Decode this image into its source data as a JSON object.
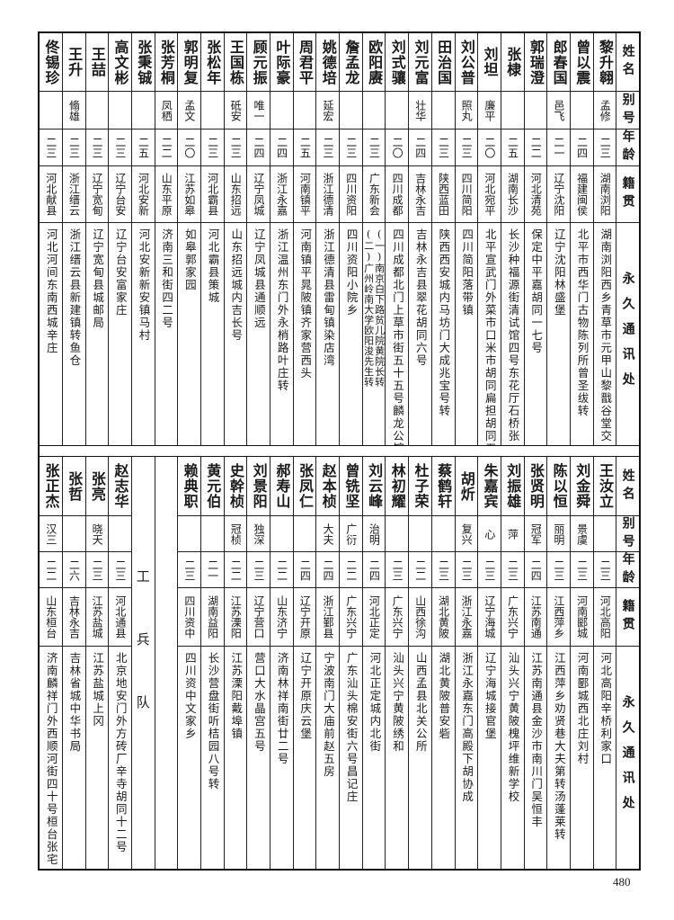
{
  "header_labels": {
    "name": "姓名",
    "alias": "别号",
    "age": "年龄",
    "native": "籍贯",
    "address": "永久通讯处"
  },
  "top_table": {
    "people": [
      {
        "name": "黎升翱",
        "alias": "孟修",
        "age": "二三",
        "native": "湖南浏阳",
        "address": [
          "湖南浏阳西乡青草市元甲山黎戬谷堂交"
        ]
      },
      {
        "name": "曾以震",
        "alias": "",
        "age": "二四",
        "native": "福建闽侯",
        "address": [
          "北平市西华门古物陈列所曾圣绂转"
        ]
      },
      {
        "name": "郎春国",
        "alias": "邑飞",
        "age": "二一",
        "native": "辽宁沈阳",
        "address": [
          "辽宁沈阳林盛堡"
        ]
      },
      {
        "name": "郭瑞澄",
        "alias": "",
        "age": "二二",
        "native": "河北清苑",
        "address": [
          "保定中平嘉胡同一七号"
        ]
      },
      {
        "name": "张棣",
        "alias": "",
        "age": "二五",
        "native": "湖南长沙",
        "address": [
          "长沙种福源街清试馆四号东花厅石桥张"
        ]
      },
      {
        "name": "刘坦",
        "alias": "廉平",
        "age": "二〇",
        "native": "河北宛平",
        "address": [
          "北平宣武门外菜市口米市胡同扁担胡同五号"
        ]
      },
      {
        "name": "刘公普",
        "alias": "照丸",
        "age": "二三",
        "native": "四川简阳",
        "address": [
          "四川简阳落带镇"
        ]
      },
      {
        "name": "田治国",
        "alias": "",
        "age": "二三",
        "native": "陕西蓝田",
        "address": [
          "陕西西安城内马坊门大成兆宝号转"
        ]
      },
      {
        "name": "刘元富",
        "alias": "壮华",
        "age": "二四",
        "native": "吉林永吉",
        "address": [
          "吉林永吉县翠花胡同六号"
        ]
      },
      {
        "name": "刘式骧",
        "alias": "",
        "age": "二〇",
        "native": "四川成都",
        "address": [
          "四川成都北门上草市街五十五号麟龙公馆"
        ]
      },
      {
        "name": "欧阳赓",
        "alias": "",
        "age": "二三",
        "native": "广东新会",
        "address": [
          "(一)南京白下路贫儿院黄院长转",
          "(二)广州岭南大学欧阳浚先生转"
        ]
      },
      {
        "name": "詹孟龙",
        "alias": "",
        "age": "二三",
        "native": "四川资阳",
        "address": [
          "四川资阳小院乡"
        ]
      },
      {
        "name": "姚德培",
        "alias": "延宏",
        "age": "二三",
        "native": "浙江德清",
        "address": [
          "浙江德清县雷甸镇染店湾"
        ]
      },
      {
        "name": "周君平",
        "alias": "",
        "age": "二五",
        "native": "河南镇平",
        "address": [
          "河南镇平晁陂镇齐家营西头"
        ]
      },
      {
        "name": "叶际豪",
        "alias": "",
        "age": "二四",
        "native": "浙江永嘉",
        "address": [
          "浙江温州东门外永梢路叶庄转"
        ]
      },
      {
        "name": "顾元振",
        "alias": "唯一",
        "age": "二四",
        "native": "辽宁凤城",
        "address": [
          "辽宁凤城县通顺远"
        ]
      },
      {
        "name": "王国栋",
        "alias": "砥安",
        "age": "二三",
        "native": "山东招远",
        "address": [
          "山东招远城内吉长号"
        ]
      },
      {
        "name": "张松年",
        "alias": "",
        "age": "二三",
        "native": "河北霸县",
        "address": [
          "河北霸县策城"
        ]
      },
      {
        "name": "郭明复",
        "alias": "孟文",
        "age": "二〇",
        "native": "江苏如皋",
        "address": [
          "如皋郭家园"
        ]
      },
      {
        "name": "张芳桐",
        "alias": "凤栖",
        "age": "二二",
        "native": "山东平原",
        "address": [
          "济南三和街四二号"
        ]
      },
      {
        "name": "张秉铖",
        "alias": "",
        "age": "二五",
        "native": "河北安新",
        "address": [
          "河北安新新安镇马村"
        ]
      },
      {
        "name": "高文彬",
        "alias": "",
        "age": "二三",
        "native": "辽宁台安",
        "address": [
          "辽宁台安富家庄"
        ]
      },
      {
        "name": "王喆",
        "alias": "",
        "age": "二三",
        "native": "辽宁宽甸",
        "address": [
          "辽宁宽甸县城邮局"
        ]
      },
      {
        "name": "王升",
        "alias": "翛雄",
        "age": "二三",
        "native": "浙江缙云",
        "address": [
          "浙江缙云县新建镇转鱼仓"
        ]
      },
      {
        "name": "佟锡珍",
        "alias": "",
        "age": "二三",
        "native": "河北献县",
        "address": [
          "河北河间东南西城辛庄"
        ]
      }
    ]
  },
  "bottom_table": {
    "people_before_section": [
      {
        "name": "王汝立",
        "alias": "",
        "age": "二三",
        "native": "河北高阳",
        "address": [
          "河北高阳辛桥利家口"
        ]
      },
      {
        "name": "刘金舜",
        "alias": "景虞",
        "age": "二三",
        "native": "河南郾城",
        "address": [
          "河南郾城西北庄刘村"
        ]
      },
      {
        "name": "陈以恒",
        "alias": "丽明",
        "age": "二三",
        "native": "江西萍乡",
        "address": [
          "江西萍乡劝贤巷大夫第转汤蓬莱转"
        ]
      },
      {
        "name": "张贤明",
        "alias": "冠军",
        "age": "二四",
        "native": "江苏南通",
        "address": [
          "江苏南通县金沙市南川门吴恒丰"
        ]
      },
      {
        "name": "刘振雄",
        "alias": "萍",
        "age": "二三",
        "native": "广东兴宁",
        "address": [
          "汕头兴宁黄陂槐坪维新学校"
        ]
      },
      {
        "name": "朱嘉宾",
        "alias": "心",
        "age": "二三",
        "native": "辽宁海城",
        "address": [
          "辽宁海城接官堡"
        ]
      },
      {
        "name": "胡炘",
        "alias": "复兴",
        "age": "二三",
        "native": "浙江永嘉",
        "address": [
          "浙江永嘉东门高殿下胡协成"
        ]
      },
      {
        "name": "蔡鹤轩",
        "alias": "",
        "age": "二三",
        "native": "湖北黄陂",
        "address": [
          "湖北黄陂普安砦"
        ]
      },
      {
        "name": "杜子荣",
        "alias": "",
        "age": "二二",
        "native": "山西徐沟",
        "address": [
          "山西孟县北关公所"
        ]
      },
      {
        "name": "林初耀",
        "alias": "",
        "age": "二三",
        "native": "广东兴宁",
        "address": [
          "汕头兴宁黄陂绣和"
        ]
      },
      {
        "name": "刘云峰",
        "alias": "治明",
        "age": "二四",
        "native": "河北正定",
        "address": [
          "河北正定城内北街"
        ]
      },
      {
        "name": "曾铣坚",
        "alias": "广衍",
        "age": "二二",
        "native": "广东兴宁",
        "address": [
          "广东汕头棉安街六号昌记庄"
        ]
      },
      {
        "name": "赵本桢",
        "alias": "大夫",
        "age": "二四",
        "native": "浙江鄞县",
        "address": [
          "宁波南门大庙前赵五房"
        ]
      },
      {
        "name": "张凤仁",
        "alias": "",
        "age": "二四",
        "native": "辽宁开原",
        "address": [
          "辽宁开原庆云堡"
        ]
      },
      {
        "name": "郝寿山",
        "alias": "",
        "age": "二二",
        "native": "山东济宁",
        "address": [
          "济南林祥南街廿二号"
        ]
      },
      {
        "name": "刘景阳",
        "alias": "独深",
        "age": "二三",
        "native": "辽宁营口",
        "address": [
          "营口大水晶宫五号"
        ]
      },
      {
        "name": "史幹桢",
        "alias": "冠桢",
        "age": "二二",
        "native": "江苏溧阳",
        "address": [
          "江苏溧阳戴埠镇"
        ]
      },
      {
        "name": "黄元伯",
        "alias": "",
        "age": "二一",
        "native": "湖南益阳",
        "address": [
          "长沙营盘街听桔园八号转"
        ]
      },
      {
        "name": "赖典职",
        "alias": "",
        "age": "二三",
        "native": "四川资中",
        "address": [
          "四川资中文家乡"
        ]
      }
    ],
    "section_label": "工兵队",
    "people_after_section": [
      {
        "name": "赵志华",
        "alias": "",
        "age": "二三",
        "native": "河北通县",
        "address": [
          "北京地安门外方砖厂辛寺胡同十二号"
        ]
      },
      {
        "name": "张亮",
        "alias": "晓天",
        "age": "二三",
        "native": "江苏盐城",
        "address": [
          "江苏盐城上冈"
        ]
      },
      {
        "name": "张哲",
        "alias": "",
        "age": "二六",
        "native": "吉林永吉",
        "address": [
          "吉林省城中华书局"
        ]
      },
      {
        "name": "张正杰",
        "alias": "汉三",
        "age": "二二",
        "native": "山东桓台",
        "address": [
          "济南麟祥门外西顺河街四十号桓台张宅"
        ]
      }
    ]
  },
  "page_number": "480"
}
